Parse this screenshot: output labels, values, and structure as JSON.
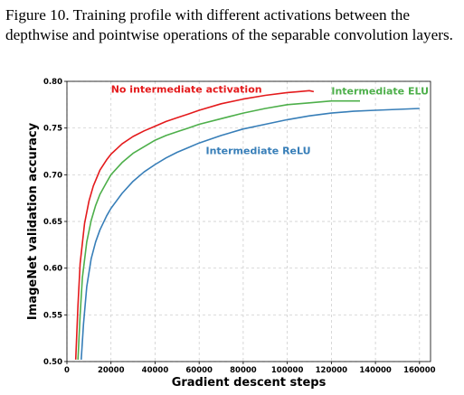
{
  "caption": "Figure 10. Training profile with different activations between the depthwise and pointwise operations of the separable convolution layers.",
  "chart_data": {
    "type": "line",
    "xlabel": "Gradient descent steps",
    "ylabel": "ImageNet validation accuracy",
    "xlim": [
      0,
      165000
    ],
    "ylim": [
      0.5,
      0.8
    ],
    "xticks": [
      0,
      20000,
      40000,
      60000,
      80000,
      100000,
      120000,
      140000,
      160000
    ],
    "xtick_labels": [
      "0",
      "20000",
      "40000",
      "60000",
      "80000",
      "100000",
      "120000",
      "140000",
      "160000"
    ],
    "yticks": [
      0.5,
      0.55,
      0.6,
      0.65,
      0.7,
      0.75,
      0.8
    ],
    "ytick_labels": [
      "0.50",
      "0.55",
      "0.60",
      "0.65",
      "0.70",
      "0.75",
      "0.80"
    ],
    "grid": true,
    "series": [
      {
        "name": "No intermediate activation",
        "color": "#e41a1c",
        "x": [
          4000,
          5000,
          6000,
          8000,
          10000,
          12000,
          15000,
          18000,
          20000,
          25000,
          30000,
          35000,
          40000,
          45000,
          50000,
          55000,
          60000,
          70000,
          80000,
          90000,
          100000,
          105000,
          110000,
          112000
        ],
        "y": [
          0.502,
          0.56,
          0.605,
          0.648,
          0.672,
          0.688,
          0.705,
          0.716,
          0.722,
          0.733,
          0.741,
          0.747,
          0.752,
          0.757,
          0.761,
          0.765,
          0.769,
          0.776,
          0.781,
          0.785,
          0.788,
          0.789,
          0.79,
          0.789
        ]
      },
      {
        "name": "Intermediate ELU",
        "color": "#4daf4a",
        "x": [
          5000,
          6000,
          7000,
          9000,
          11000,
          13000,
          15000,
          18000,
          20000,
          25000,
          30000,
          35000,
          40000,
          45000,
          50000,
          55000,
          60000,
          70000,
          80000,
          90000,
          100000,
          110000,
          120000,
          130000,
          133000
        ],
        "y": [
          0.502,
          0.55,
          0.59,
          0.628,
          0.651,
          0.667,
          0.679,
          0.692,
          0.7,
          0.713,
          0.723,
          0.73,
          0.737,
          0.742,
          0.746,
          0.75,
          0.754,
          0.76,
          0.766,
          0.771,
          0.775,
          0.777,
          0.779,
          0.779,
          0.779
        ]
      },
      {
        "name": "Intermediate ReLU",
        "color": "#377eb8",
        "x": [
          6500,
          7500,
          9000,
          11000,
          13000,
          15000,
          18000,
          20000,
          25000,
          30000,
          35000,
          40000,
          45000,
          50000,
          55000,
          60000,
          70000,
          80000,
          90000,
          100000,
          110000,
          120000,
          130000,
          140000,
          150000,
          160000
        ],
        "y": [
          0.502,
          0.54,
          0.58,
          0.61,
          0.628,
          0.641,
          0.656,
          0.664,
          0.68,
          0.693,
          0.703,
          0.711,
          0.718,
          0.724,
          0.729,
          0.734,
          0.742,
          0.749,
          0.754,
          0.759,
          0.763,
          0.766,
          0.768,
          0.769,
          0.77,
          0.771
        ]
      }
    ],
    "annotations": [
      {
        "text": "No intermediate activation",
        "color": "#e41a1c",
        "x": 20000,
        "y": 0.788
      },
      {
        "text": "Intermediate ELU",
        "color": "#4daf4a",
        "x": 120000,
        "y": 0.786
      },
      {
        "text": "Intermediate ReLU",
        "color": "#377eb8",
        "x": 63000,
        "y": 0.722
      }
    ]
  }
}
